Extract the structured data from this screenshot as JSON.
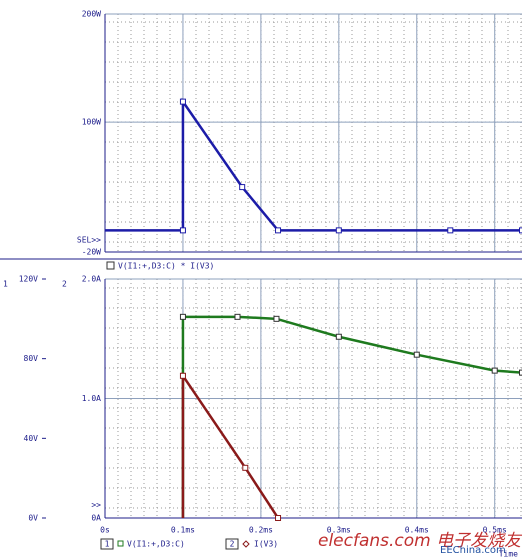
{
  "chart_data": [
    {
      "type": "line",
      "legend": "V(I1:+,D3:C) * I(V3)",
      "annotation": "SEL>>",
      "xlim": [
        0,
        0.535
      ],
      "xticks": [
        0,
        0.1,
        0.2,
        0.3,
        0.4,
        0.5
      ],
      "ylim": [
        -20,
        200
      ],
      "yticks": [
        {
          "value": 200,
          "label": "200W"
        },
        {
          "value": 100,
          "label": "100W"
        },
        {
          "value": -20,
          "label": "-20W"
        }
      ],
      "grid": true,
      "series": [
        {
          "name": "V(I1:+,D3:C) * I(V3)",
          "color": "#1c1ca8",
          "x": [
            0,
            0.1,
            0.1,
            0.176,
            0.222,
            0.3,
            0.443,
            0.535
          ],
          "values": [
            0,
            0,
            119,
            40,
            0,
            0,
            0,
            0
          ]
        }
      ]
    },
    {
      "type": "line",
      "axis_labels": [
        "1",
        "2"
      ],
      "annotation": ">>",
      "xlabel": "Time",
      "xlim": [
        0,
        0.535
      ],
      "xticks": [
        {
          "value": 0,
          "label": "0s"
        },
        {
          "value": 0.1,
          "label": "0.1ms"
        },
        {
          "value": 0.2,
          "label": "0.2ms"
        },
        {
          "value": 0.3,
          "label": "0.3ms"
        },
        {
          "value": 0.4,
          "label": "0.4ms"
        },
        {
          "value": 0.5,
          "label": "0.5ms"
        }
      ],
      "ylim": [
        0,
        120
      ],
      "yticks": [
        {
          "value": 0,
          "label": "0V"
        },
        {
          "value": 40,
          "label": "40V"
        },
        {
          "value": 80,
          "label": "80V"
        },
        {
          "value": 120,
          "label": "120V"
        }
      ],
      "y2lim": [
        0,
        2
      ],
      "y2ticks": [
        {
          "value": 0,
          "label": "0A"
        },
        {
          "value": 1,
          "label": "1.0A"
        },
        {
          "value": 2,
          "label": "2.0A"
        }
      ],
      "grid": true,
      "series": [
        {
          "name": "V(I1:+,D3:C)",
          "color": "#1e7a1e",
          "axis": "y",
          "x": [
            0.1,
            0.1,
            0.17,
            0.22,
            0.3,
            0.4,
            0.5,
            0.535
          ],
          "values": [
            0,
            101,
            101,
            100,
            91,
            82,
            74,
            73
          ]
        },
        {
          "name": "I(V3)",
          "color": "#8a1a1a",
          "axis": "y2",
          "x": [
            0.1,
            0.1,
            0.18,
            0.222
          ],
          "values": [
            0,
            1.19,
            0.42,
            0
          ]
        }
      ]
    }
  ],
  "watermark": "elecfans.com 电子发烧友",
  "watermark2": "EEChina.com"
}
